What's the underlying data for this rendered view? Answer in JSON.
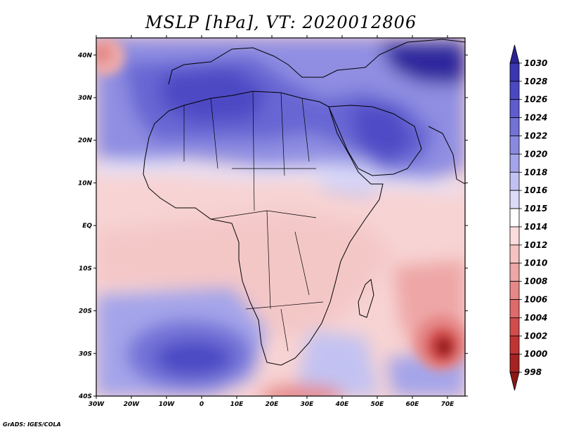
{
  "title": "MSLP [hPa], VT: 2020012806",
  "credit": "GrADS: IGES/COLA",
  "map": {
    "lon_labels": [
      "30W",
      "20W",
      "10W",
      "0",
      "10E",
      "20E",
      "30E",
      "40E",
      "50E",
      "60E",
      "70E"
    ],
    "lat_labels": [
      "40N",
      "30N",
      "20N",
      "10N",
      "EQ",
      "10S",
      "20S",
      "30S",
      "40S"
    ],
    "lon_range": [
      -30,
      75
    ],
    "lat_range": [
      -40,
      44
    ]
  },
  "colorbar": {
    "levels": [
      "1030",
      "1028",
      "1026",
      "1024",
      "1022",
      "1020",
      "1018",
      "1016",
      "1015",
      "1014",
      "1012",
      "1010",
      "1008",
      "1006",
      "1004",
      "1002",
      "1000",
      "998"
    ],
    "colors": [
      "#2a2396",
      "#3b36b2",
      "#4b48c4",
      "#5e5ccf",
      "#7372d7",
      "#8a89e0",
      "#a4a4ea",
      "#c2c2f2",
      "#dddcf8",
      "#ffffff",
      "#fadcdc",
      "#f5c2c2",
      "#eea6a6",
      "#e68888",
      "#de6a6a",
      "#d24c4c",
      "#c13434",
      "#a72222",
      "#8c1616"
    ]
  },
  "pressure_features": [
    {
      "name": "high-north-africa",
      "lon": 10,
      "lat": 28,
      "value": 1026
    },
    {
      "name": "high-arabia",
      "lon": 48,
      "lat": 22,
      "value": 1024
    },
    {
      "name": "high-east-asia",
      "lon": 68,
      "lat": 39,
      "value": 1030
    },
    {
      "name": "high-south-atlantic",
      "lon": -5,
      "lat": -29,
      "value": 1026
    },
    {
      "name": "low-indian-ocean",
      "lon": 69,
      "lat": -29,
      "value": 998
    },
    {
      "name": "low-atlantic-northwest",
      "lon": -29,
      "lat": 39,
      "value": 1010
    }
  ]
}
